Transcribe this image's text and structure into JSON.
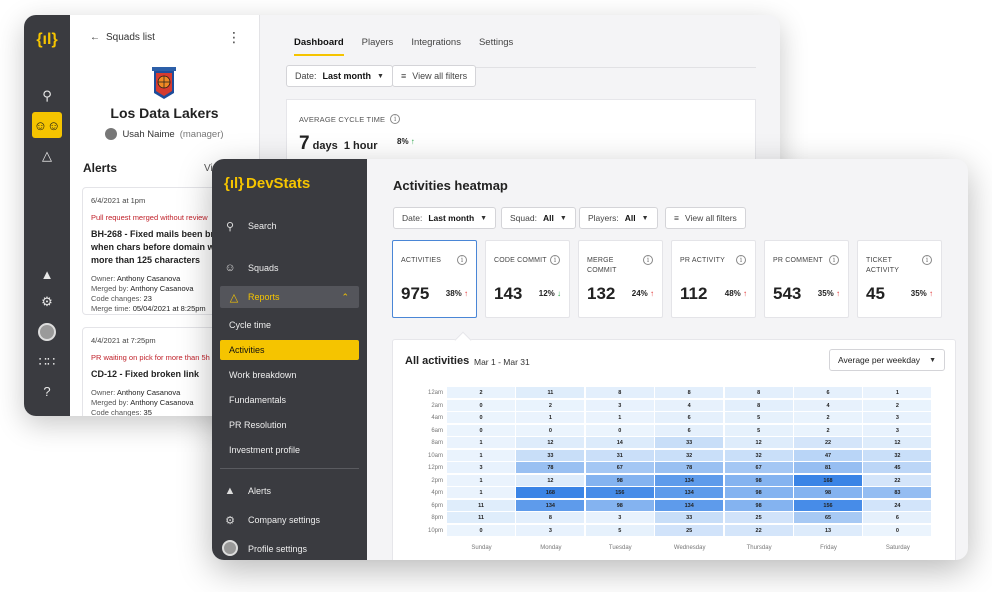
{
  "back_window": {
    "rail_logo": "{ıl}",
    "back_link": "Squads list",
    "squad_name": "Los Data Lakers",
    "manager_name": "Usah Naime",
    "manager_role": "(manager)",
    "alerts_title": "Alerts",
    "alerts_view": "Vi",
    "alerts": [
      {
        "date": "6/4/2021 at 1pm",
        "warning": "Pull request merged without review",
        "title": "BH-268 - Fixed mails been broken when chars before domain were more than 125 characters",
        "owner_label": "Owner:",
        "owner": "Anthony Casanova",
        "merged_label": "Merged by:",
        "merged_by": "Anthony Casanova",
        "changes_label": "Code changes:",
        "changes": "23",
        "merge_time_label": "Merge time:",
        "merge_time": "05/04/2021 at 8:25pm"
      },
      {
        "date": "4/4/2021 at 7:25pm",
        "warning": "PR waiting on pick for more than 5h",
        "title": "CD-12 - Fixed broken link",
        "owner_label": "Owner:",
        "owner": "Anthony Casanova",
        "merged_label": "Merged by:",
        "merged_by": "Anthony Casanova",
        "changes_label": "Code changes:",
        "changes": "35"
      }
    ],
    "tabs": [
      "Dashboard",
      "Players",
      "Integrations",
      "Settings"
    ],
    "date_filter_label": "Date:",
    "date_filter_value": "Last month",
    "view_filters": "View all filters",
    "cycle_label": "AVERAGE CYCLE TIME",
    "cycle_days_num": "7",
    "cycle_days_unit": "days",
    "cycle_hours_num": "1",
    "cycle_hours_unit": "hour",
    "cycle_change": "8%",
    "cycle_change_arrow": "↑"
  },
  "front_window": {
    "logo_text": "DevStats",
    "logo_mark": "{ıl}",
    "nav": {
      "search": "Search",
      "squads": "Squads",
      "reports": "Reports",
      "reports_sub": [
        "Cycle time",
        "Activities",
        "Work breakdown",
        "Fundamentals",
        "PR Resolution",
        "Investment profile"
      ],
      "alerts": "Alerts",
      "company_settings": "Company settings",
      "profile_settings": "Profile settings"
    },
    "page_title": "Activities heatmap",
    "filters": {
      "date_label": "Date:",
      "date_value": "Last month",
      "squad_label": "Squad:",
      "squad_value": "All",
      "players_label": "Players:",
      "players_value": "All",
      "view_all": "View all filters"
    },
    "kpis": [
      {
        "label": "ACTIVITIES",
        "value": "975",
        "change": "38%",
        "dir": "↑",
        "color": "#e03232"
      },
      {
        "label": "CODE COMMIT",
        "value": "143",
        "change": "12%",
        "dir": "↓",
        "color": "#2aa84a"
      },
      {
        "label": "MERGE COMMIT",
        "value": "132",
        "change": "24%",
        "dir": "↑",
        "color": "#e03232"
      },
      {
        "label": "PR ACTIVITY",
        "value": "112",
        "change": "48%",
        "dir": "↑",
        "color": "#e03232"
      },
      {
        "label": "PR COMMENT",
        "value": "543",
        "change": "35%",
        "dir": "↑",
        "color": "#e03232"
      },
      {
        "label": "TICKET ACTIVITY",
        "value": "45",
        "change": "35%",
        "dir": "↑",
        "color": "#e03232"
      }
    ],
    "heatmap": {
      "title": "All activities",
      "range": "Mar 1 - Mar 31",
      "mode": "Average per weekday",
      "days": [
        "Sunday",
        "Monday",
        "Tuesday",
        "Wednesday",
        "Thursday",
        "Friday",
        "Saturday"
      ],
      "times": [
        "12am",
        "2am",
        "4am",
        "6am",
        "8am",
        "10am",
        "12pm",
        "2pm",
        "4pm",
        "6pm",
        "8pm",
        "10pm"
      ],
      "values": [
        [
          2,
          11,
          8,
          8,
          8,
          6,
          1
        ],
        [
          0,
          2,
          3,
          4,
          8,
          4,
          2
        ],
        [
          0,
          1,
          1,
          6,
          5,
          2,
          3
        ],
        [
          0,
          0,
          0,
          6,
          5,
          2,
          3
        ],
        [
          1,
          12,
          14,
          33,
          12,
          22,
          12
        ],
        [
          1,
          33,
          31,
          32,
          32,
          47,
          32
        ],
        [
          3,
          78,
          67,
          78,
          67,
          81,
          45
        ],
        [
          1,
          12,
          98,
          134,
          98,
          168,
          22
        ],
        [
          1,
          168,
          156,
          134,
          98,
          98,
          83
        ],
        [
          11,
          134,
          98,
          134,
          98,
          156,
          24
        ],
        [
          11,
          8,
          3,
          33,
          25,
          65,
          6
        ],
        [
          0,
          3,
          5,
          25,
          22,
          13,
          0
        ]
      ]
    }
  }
}
